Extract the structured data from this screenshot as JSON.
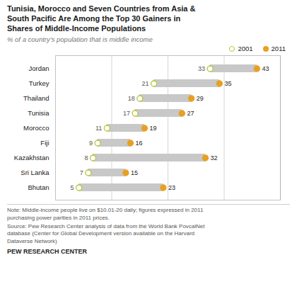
{
  "chart_data": {
    "type": "dumbbell",
    "title": "Tunisia, Morocco and Seven Countries from Asia &\nSouth Pacific Are Among the Top 30 Gainers in\nShares of Middle-Income Populations",
    "subtitle": "% of a country’s population that is middle income",
    "categories": [
      "Jordan",
      "Turkey",
      "Thailand",
      "Tunisia",
      "Morocco",
      "Fiji",
      "Kazakhstan",
      "Sri Lanka",
      "Bhutan"
    ],
    "series": [
      {
        "name": "2001",
        "color": "#b8c430",
        "marker": "hollow",
        "values": [
          33,
          21,
          18,
          17,
          11,
          9,
          8,
          7,
          5
        ]
      },
      {
        "name": "2011",
        "color": "#e8a020",
        "marker": "filled",
        "values": [
          43,
          35,
          29,
          27,
          19,
          16,
          32,
          15,
          23
        ]
      }
    ],
    "color": "#c8c8c8",
    "orientation": "horizontal",
    "xlim": [
      0,
      48
    ],
    "xticks": [
      12,
      24,
      36,
      48
    ],
    "grid": true,
    "tick_labels": "y",
    "data_labels": true,
    "legend": "top",
    "note": "Note: Middle-income people live on $10.01-20 daily; figures expressed in 2011\npurchasing power parities in 2011 prices.",
    "source": "Source: Pew Research Center analysis of data from the World Bank PovcalNet\ndatabase (Center for Global Development version available on the Harvard\nDataverse Network)",
    "footer": "PEW RESEARCH CENTER"
  }
}
